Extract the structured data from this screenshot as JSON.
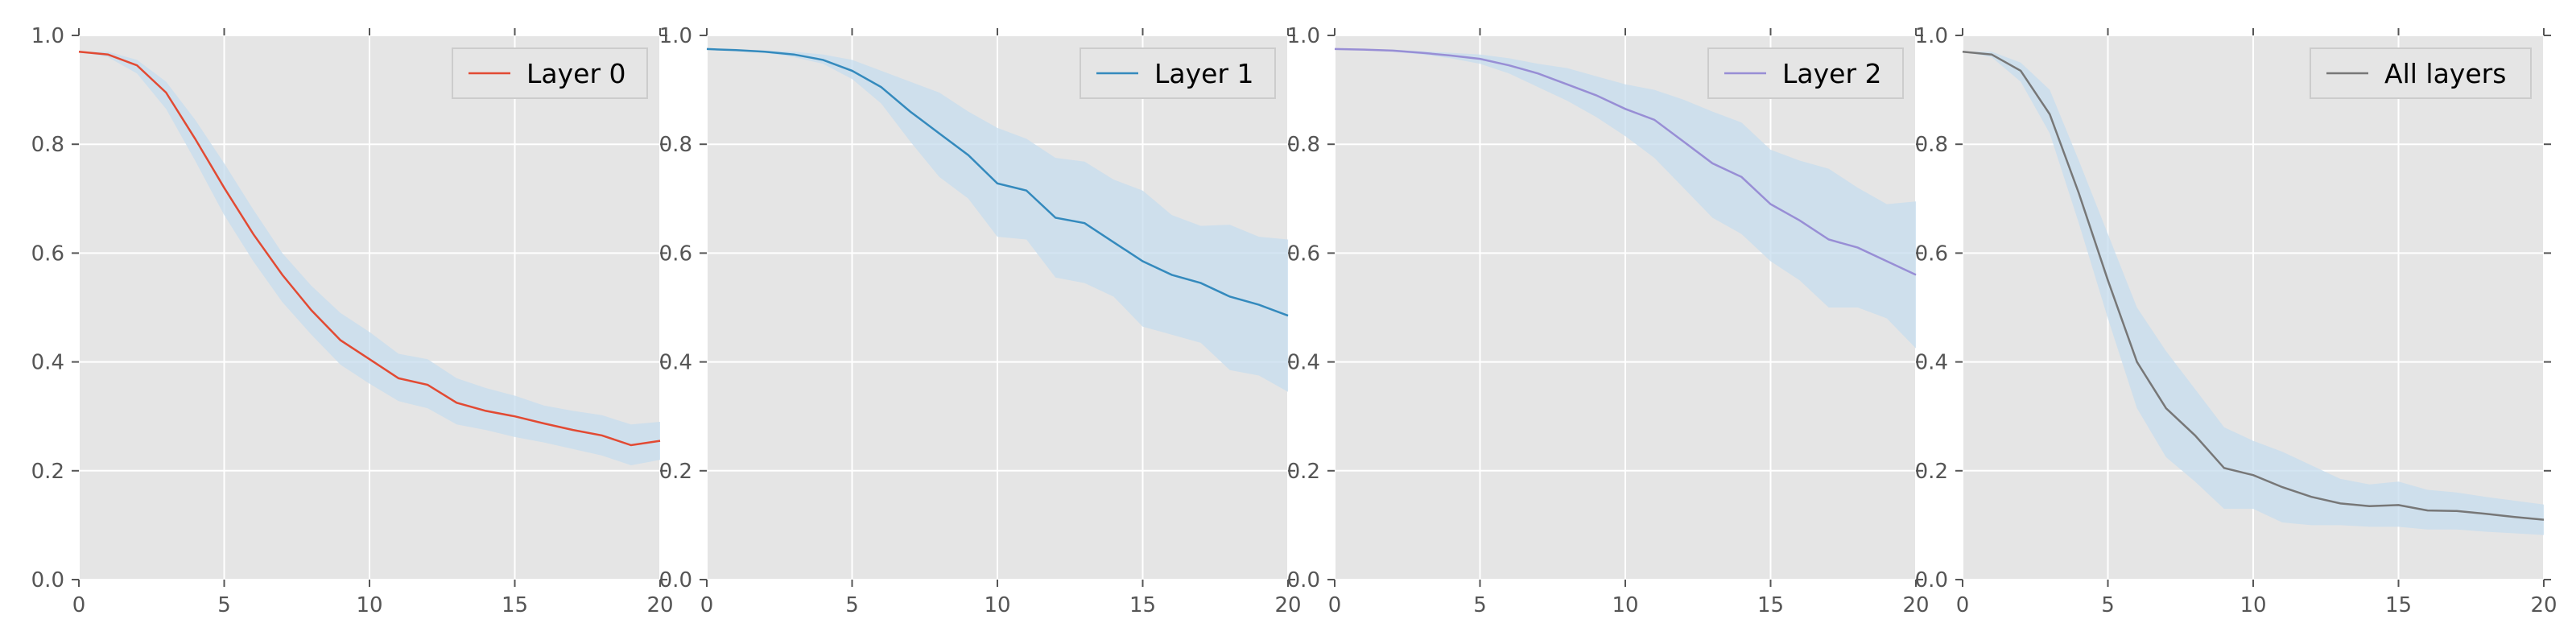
{
  "chart_data": [
    {
      "type": "line",
      "xlim": [
        0,
        20
      ],
      "ylim": [
        0.0,
        1.0
      ],
      "xticks": [
        "0",
        "5",
        "10",
        "15",
        "20"
      ],
      "yticks": [
        "0.0",
        "0.2",
        "0.4",
        "0.6",
        "0.8",
        "1.0"
      ],
      "grid": true,
      "legend_position": "top-right",
      "series": [
        {
          "name": "Layer 0",
          "color": "#e24a33",
          "x": [
            0,
            1,
            2,
            3,
            4,
            5,
            6,
            7,
            8,
            9,
            10,
            11,
            12,
            13,
            14,
            15,
            16,
            17,
            18,
            19,
            20
          ],
          "y": [
            0.97,
            0.965,
            0.945,
            0.895,
            0.81,
            0.72,
            0.635,
            0.56,
            0.495,
            0.44,
            0.405,
            0.37,
            0.358,
            0.325,
            0.31,
            0.3,
            0.287,
            0.275,
            0.265,
            0.247,
            0.255
          ],
          "band_lower": [
            0.97,
            0.96,
            0.93,
            0.865,
            0.77,
            0.67,
            0.585,
            0.51,
            0.45,
            0.395,
            0.36,
            0.328,
            0.315,
            0.285,
            0.275,
            0.262,
            0.252,
            0.24,
            0.228,
            0.21,
            0.22
          ],
          "band_upper": [
            0.97,
            0.97,
            0.955,
            0.915,
            0.845,
            0.765,
            0.68,
            0.6,
            0.54,
            0.49,
            0.455,
            0.415,
            0.405,
            0.37,
            0.352,
            0.338,
            0.32,
            0.31,
            0.302,
            0.285,
            0.29
          ]
        }
      ]
    },
    {
      "type": "line",
      "xlim": [
        0,
        20
      ],
      "ylim": [
        0.0,
        1.0
      ],
      "xticks": [
        "0",
        "5",
        "10",
        "15",
        "20"
      ],
      "yticks": [
        "0.0",
        "0.2",
        "0.4",
        "0.6",
        "0.8",
        "1.0"
      ],
      "grid": true,
      "legend_position": "top-right",
      "series": [
        {
          "name": "Layer 1",
          "color": "#348abd",
          "x": [
            0,
            1,
            2,
            3,
            4,
            5,
            6,
            7,
            8,
            9,
            10,
            11,
            12,
            13,
            14,
            15,
            16,
            17,
            18,
            19,
            20
          ],
          "y": [
            0.975,
            0.973,
            0.97,
            0.965,
            0.955,
            0.935,
            0.905,
            0.86,
            0.82,
            0.78,
            0.728,
            0.715,
            0.665,
            0.655,
            0.62,
            0.585,
            0.56,
            0.545,
            0.52,
            0.505,
            0.485
          ],
          "band_lower": [
            0.975,
            0.972,
            0.968,
            0.96,
            0.948,
            0.92,
            0.875,
            0.805,
            0.74,
            0.7,
            0.63,
            0.625,
            0.555,
            0.545,
            0.52,
            0.465,
            0.45,
            0.435,
            0.385,
            0.375,
            0.345
          ],
          "band_upper": [
            0.975,
            0.975,
            0.972,
            0.97,
            0.965,
            0.955,
            0.935,
            0.915,
            0.895,
            0.86,
            0.83,
            0.81,
            0.775,
            0.768,
            0.735,
            0.715,
            0.67,
            0.65,
            0.652,
            0.63,
            0.625
          ]
        }
      ]
    },
    {
      "type": "line",
      "xlim": [
        0,
        20
      ],
      "ylim": [
        0.0,
        1.0
      ],
      "xticks": [
        "0",
        "5",
        "10",
        "15",
        "20"
      ],
      "yticks": [
        "0.0",
        "0.2",
        "0.4",
        "0.6",
        "0.8",
        "1.0"
      ],
      "grid": true,
      "legend_position": "top-right",
      "series": [
        {
          "name": "Layer 2",
          "color": "#988ed5",
          "x": [
            0,
            1,
            2,
            3,
            4,
            5,
            6,
            7,
            8,
            9,
            10,
            11,
            12,
            13,
            14,
            15,
            16,
            17,
            18,
            19,
            20
          ],
          "y": [
            0.975,
            0.974,
            0.972,
            0.968,
            0.963,
            0.957,
            0.945,
            0.93,
            0.91,
            0.89,
            0.865,
            0.845,
            0.805,
            0.765,
            0.74,
            0.69,
            0.66,
            0.625,
            0.61,
            0.585,
            0.56
          ],
          "band_lower": [
            0.975,
            0.973,
            0.97,
            0.965,
            0.958,
            0.948,
            0.93,
            0.905,
            0.88,
            0.85,
            0.815,
            0.775,
            0.72,
            0.665,
            0.635,
            0.585,
            0.55,
            0.5,
            0.5,
            0.48,
            0.425
          ],
          "band_upper": [
            0.975,
            0.975,
            0.974,
            0.971,
            0.968,
            0.965,
            0.958,
            0.948,
            0.94,
            0.925,
            0.91,
            0.9,
            0.882,
            0.86,
            0.84,
            0.79,
            0.77,
            0.755,
            0.72,
            0.69,
            0.695
          ]
        }
      ]
    },
    {
      "type": "line",
      "xlim": [
        0,
        20
      ],
      "ylim": [
        0.0,
        1.0
      ],
      "xticks": [
        "0",
        "5",
        "10",
        "15",
        "20"
      ],
      "yticks": [
        "0.0",
        "0.2",
        "0.4",
        "0.6",
        "0.8",
        "1.0"
      ],
      "grid": true,
      "legend_position": "top-right",
      "series": [
        {
          "name": "All layers",
          "color": "#777777",
          "x": [
            0,
            1,
            2,
            3,
            4,
            5,
            6,
            7,
            8,
            9,
            10,
            11,
            12,
            13,
            14,
            15,
            16,
            17,
            18,
            19,
            20
          ],
          "y": [
            0.97,
            0.965,
            0.935,
            0.855,
            0.71,
            0.55,
            0.4,
            0.315,
            0.265,
            0.205,
            0.192,
            0.17,
            0.152,
            0.14,
            0.135,
            0.137,
            0.127,
            0.126,
            0.121,
            0.115,
            0.11
          ],
          "band_lower": [
            0.97,
            0.96,
            0.915,
            0.82,
            0.655,
            0.48,
            0.315,
            0.225,
            0.18,
            0.13,
            0.13,
            0.105,
            0.1,
            0.1,
            0.097,
            0.097,
            0.092,
            0.092,
            0.088,
            0.085,
            0.082
          ],
          "band_upper": [
            0.97,
            0.97,
            0.95,
            0.9,
            0.77,
            0.635,
            0.5,
            0.42,
            0.35,
            0.28,
            0.255,
            0.235,
            0.21,
            0.185,
            0.175,
            0.18,
            0.165,
            0.16,
            0.152,
            0.145,
            0.138
          ]
        }
      ]
    }
  ],
  "style": {
    "axes_background": "#e5e5e5",
    "grid_color": "#ffffff",
    "band_color": "#c6dcee",
    "band_opacity": 0.75,
    "tick_color": "#555555"
  }
}
